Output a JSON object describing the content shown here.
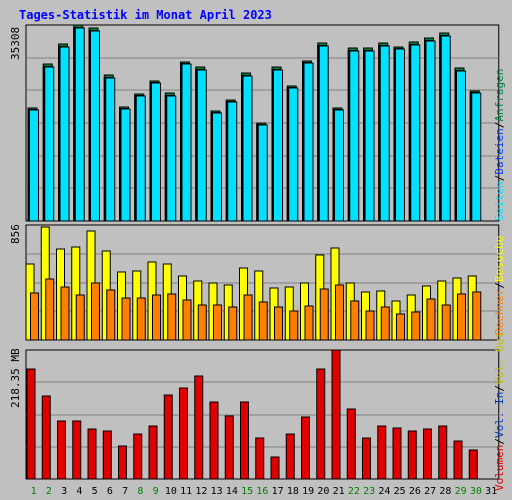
{
  "title": "Tages-Statistik im Monat April 2023",
  "colors": {
    "background": "#c0c0c0",
    "title": "#0000ff",
    "grid": "#808080",
    "anfragen": "#008040",
    "dateien": "#0040ff",
    "seiten": "#00e0ff",
    "besuche": "#ffff00",
    "rechner": "#ff8000",
    "vol_out": "#c0c000",
    "vol_in": "#0040c0",
    "volumen": "#e00000",
    "weekday_label": "#000000",
    "weekend_label": "#008000"
  },
  "chart_data": [
    {
      "type": "bar",
      "title": "Tages-Statistik im Monat April 2023",
      "categories": [
        "1",
        "2",
        "3",
        "4",
        "5",
        "6",
        "7",
        "8",
        "9",
        "10",
        "11",
        "12",
        "13",
        "14",
        "15",
        "16",
        "17",
        "18",
        "19",
        "20",
        "21",
        "22",
        "23",
        "24",
        "25",
        "26",
        "27",
        "28",
        "29",
        "30",
        "31"
      ],
      "weekend_days": [
        "1",
        "2",
        "8",
        "9",
        "15",
        "16",
        "22",
        "23",
        "29",
        "30"
      ],
      "ymax_label": "35308",
      "ylim": [
        0,
        35308
      ],
      "grid": true,
      "legend": "right",
      "series": [
        {
          "name": "Anfragen",
          "values": [
            20400,
            28300,
            31900,
            35300,
            34700,
            26300,
            20600,
            22900,
            25300,
            23000,
            28600,
            27700,
            19900,
            21800,
            26700,
            17700,
            27700,
            24400,
            28800,
            32100,
            20400,
            31200,
            31100,
            32100,
            31400,
            32200,
            33000,
            33800,
            27600,
            23400,
            0
          ]
        },
        {
          "name": "Dateien",
          "values": [
            20000,
            27800,
            31400,
            34800,
            34200,
            25800,
            20100,
            22500,
            24900,
            22600,
            28200,
            27200,
            19500,
            21400,
            26200,
            17300,
            27200,
            24000,
            28400,
            31600,
            20000,
            30700,
            30600,
            31600,
            30900,
            31700,
            32500,
            33300,
            27100,
            23000,
            0
          ]
        },
        {
          "name": "Seiten",
          "values": [
            0,
            0,
            0,
            0,
            0,
            0,
            0,
            0,
            0,
            0,
            0,
            0,
            0,
            0,
            0,
            0,
            0,
            0,
            0,
            0,
            0,
            0,
            0,
            0,
            0,
            0,
            0,
            0,
            0,
            0,
            0
          ]
        }
      ]
    },
    {
      "type": "bar",
      "ymax_label": "856",
      "ylim": [
        0,
        856
      ],
      "grid": true,
      "series": [
        {
          "name": "Besuche",
          "values": [
            564,
            840,
            674,
            691,
            813,
            662,
            509,
            511,
            578,
            562,
            479,
            437,
            427,
            406,
            537,
            515,
            384,
            392,
            427,
            632,
            685,
            427,
            355,
            367,
            294,
            335,
            402,
            438,
            465,
            476,
            0
          ]
        },
        {
          "name": "Rechner",
          "values": [
            348,
            457,
            393,
            335,
            423,
            375,
            313,
            313,
            335,
            342,
            296,
            258,
            261,
            242,
            332,
            280,
            242,
            219,
            253,
            376,
            407,
            290,
            216,
            246,
            195,
            210,
            305,
            258,
            345,
            358,
            0
          ]
        }
      ]
    },
    {
      "type": "bar",
      "ymax_label": "218.35 MB",
      "ylim": [
        0,
        218.35
      ],
      "grid": true,
      "series": [
        {
          "name": "Volumen",
          "values": [
            186,
            140,
            98,
            98,
            84,
            82,
            56,
            76,
            90,
            142,
            154,
            174,
            131,
            107,
            131,
            70,
            37,
            77,
            105,
            186,
            218,
            119,
            70,
            90,
            86,
            82,
            84,
            90,
            65,
            49,
            0
          ]
        }
      ]
    }
  ],
  "legend_right": {
    "panel1": {
      "anfragen": "Anfragen",
      "dateien": "Dateien",
      "seiten": "Seiten"
    },
    "panel2": {
      "besuche": "Besuche",
      "rechner": "Rechner"
    },
    "panel3": {
      "vol_out": "Vol. Out",
      "vol_in": "Vol. In",
      "volumen": "Volumen"
    },
    "separator": "/"
  }
}
